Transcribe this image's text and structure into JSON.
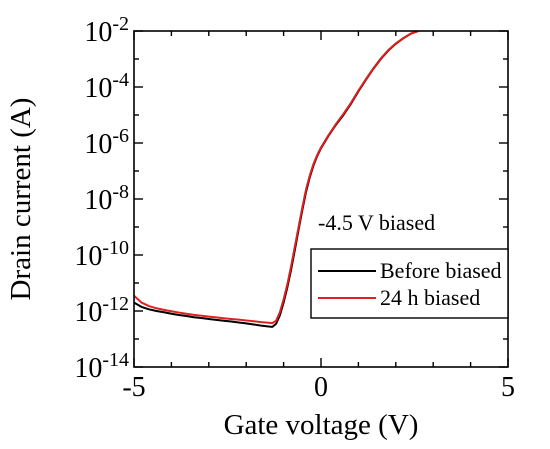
{
  "chart_data": {
    "type": "line",
    "title": "",
    "xlabel": "Gate voltage (V)",
    "ylabel": "Drain current (A)",
    "xlim": [
      -5,
      5
    ],
    "ylim_log10": [
      -14,
      -2
    ],
    "y_scale": "log",
    "grid": false,
    "x_ticks": [
      {
        "value": -5,
        "label": "-5"
      },
      {
        "value": 0,
        "label": "0"
      },
      {
        "value": 5,
        "label": "5"
      }
    ],
    "y_ticks": [
      {
        "exp": -2,
        "base": "10",
        "sup": "-2"
      },
      {
        "exp": -4,
        "base": "10",
        "sup": "-4"
      },
      {
        "exp": -6,
        "base": "10",
        "sup": "-6"
      },
      {
        "exp": -8,
        "base": "10",
        "sup": "-8"
      },
      {
        "exp": -10,
        "base": "10",
        "sup": "-10"
      },
      {
        "exp": -12,
        "base": "10",
        "sup": "-12"
      },
      {
        "exp": -14,
        "base": "10",
        "sup": "-14"
      }
    ],
    "annotation": "-4.5 V biased",
    "legend_position": "right",
    "series": [
      {
        "name": "Before biased",
        "color": "#000000",
        "x": [
          -5,
          -4.8,
          -4.6,
          -4.4,
          -4.2,
          -4.0,
          -3.8,
          -3.6,
          -3.4,
          -3.2,
          -3.0,
          -2.8,
          -2.6,
          -2.4,
          -2.2,
          -2.0,
          -1.8,
          -1.6,
          -1.4,
          -1.3,
          -1.2,
          -1.1,
          -1.0,
          -0.9,
          -0.8,
          -0.7,
          -0.6,
          -0.5,
          -0.4,
          -0.3,
          -0.2,
          -0.1,
          0.0,
          0.2,
          0.4,
          0.6,
          0.8,
          1.0,
          1.2,
          1.4,
          1.6,
          1.8,
          2.0,
          2.2,
          2.4,
          2.6
        ],
        "y": [
          2e-12,
          1.4e-12,
          1.15e-12,
          1e-12,
          9e-13,
          8e-13,
          7.2e-13,
          6.6e-13,
          6e-13,
          5.6e-13,
          5.2e-13,
          4.8e-13,
          4.5e-13,
          4.2e-13,
          3.9e-13,
          3.6e-13,
          3.3e-13,
          3e-13,
          2.8e-13,
          2.7e-13,
          3.5e-13,
          7e-13,
          2e-12,
          7e-12,
          3e-11,
          1.5e-10,
          8e-10,
          4e-09,
          1.8e-08,
          6e-08,
          1.6e-07,
          3.5e-07,
          6.5e-07,
          1.8e-06,
          4.5e-06,
          1e-05,
          2.5e-05,
          7e-05,
          0.00018,
          0.00045,
          0.001,
          0.002,
          0.0035,
          0.0055,
          0.008,
          0.01
        ]
      },
      {
        "name": "24 h biased",
        "color": "#e02020",
        "x": [
          -5,
          -4.8,
          -4.6,
          -4.4,
          -4.2,
          -4.0,
          -3.8,
          -3.6,
          -3.4,
          -3.2,
          -3.0,
          -2.8,
          -2.6,
          -2.4,
          -2.2,
          -2.0,
          -1.8,
          -1.6,
          -1.4,
          -1.3,
          -1.2,
          -1.1,
          -1.0,
          -0.9,
          -0.8,
          -0.7,
          -0.6,
          -0.5,
          -0.4,
          -0.3,
          -0.2,
          -0.1,
          0.0,
          0.2,
          0.4,
          0.6,
          0.8,
          1.0,
          1.2,
          1.4,
          1.6,
          1.8,
          2.0,
          2.2,
          2.4,
          2.6
        ],
        "y": [
          3.5e-12,
          2e-12,
          1.5e-12,
          1.25e-12,
          1.1e-12,
          9.8e-13,
          8.8e-13,
          8e-13,
          7.3e-13,
          6.8e-13,
          6.3e-13,
          5.9e-13,
          5.5e-13,
          5.2e-13,
          4.9e-13,
          4.6e-13,
          4.3e-13,
          4e-13,
          3.8e-13,
          3.7e-13,
          4.5e-13,
          9e-13,
          2.6e-12,
          9e-12,
          4e-11,
          2e-10,
          1e-09,
          5e-09,
          2.2e-08,
          7e-08,
          1.8e-07,
          3.8e-07,
          7e-07,
          1.9e-06,
          4.8e-06,
          1.1e-05,
          2.7e-05,
          7.5e-05,
          0.00019,
          0.00047,
          0.00105,
          0.0021,
          0.0036,
          0.0056,
          0.0081,
          0.01
        ]
      }
    ]
  }
}
